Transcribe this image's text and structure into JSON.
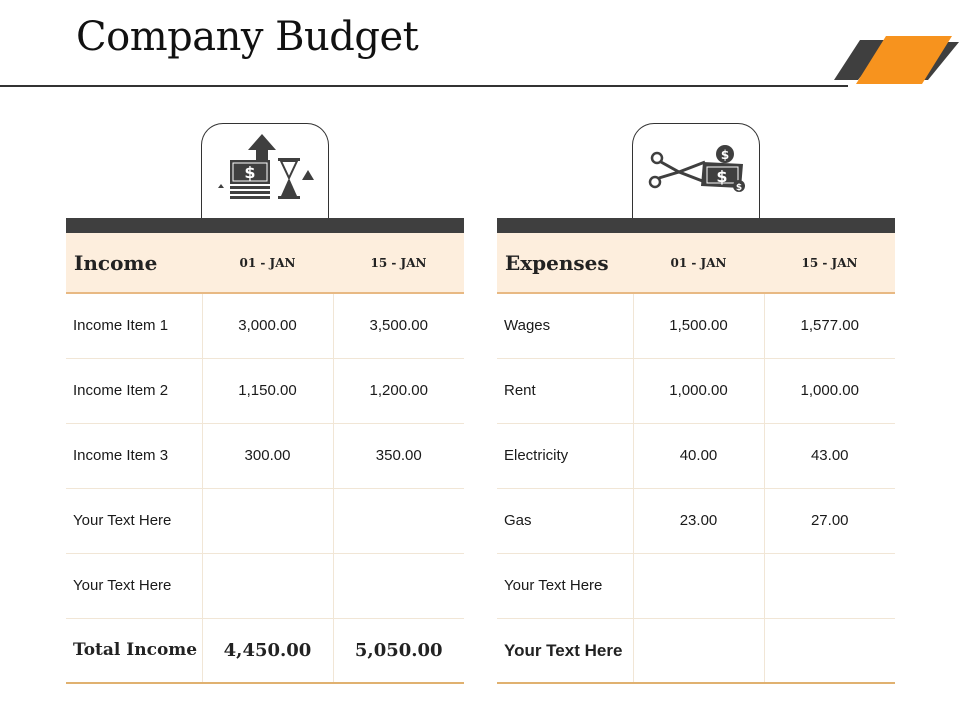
{
  "title": "Company Budget",
  "income": {
    "heading": "Income",
    "columns": [
      "01 - JAN",
      "15 - JAN"
    ],
    "rows": [
      {
        "label": "Income Item 1",
        "v1": "3,000.00",
        "v2": "3,500.00"
      },
      {
        "label": "Income Item 2",
        "v1": "1,150.00",
        "v2": "1,200.00"
      },
      {
        "label": "Income Item 3",
        "v1": "300.00",
        "v2": "350.00"
      },
      {
        "label": "Your Text Here",
        "v1": "",
        "v2": ""
      },
      {
        "label": "Your Text Here",
        "v1": "",
        "v2": ""
      }
    ],
    "total": {
      "label": "Total Income",
      "v1": "4,450.00",
      "v2": "5,050.00"
    }
  },
  "expenses": {
    "heading": "Expenses",
    "columns": [
      "01 - JAN",
      "15 - JAN"
    ],
    "rows": [
      {
        "label": "Wages",
        "v1": "1,500.00",
        "v2": "1,577.00"
      },
      {
        "label": "Rent",
        "v1": "1,000.00",
        "v2": "1,000.00"
      },
      {
        "label": "Electricity",
        "v1": "40.00",
        "v2": "43.00"
      },
      {
        "label": "Gas",
        "v1": "23.00",
        "v2": "27.00"
      },
      {
        "label": "Your Text Here",
        "v1": "",
        "v2": ""
      }
    ],
    "total": {
      "label": "Your Text Here",
      "v1": "",
      "v2": ""
    }
  },
  "icons": {
    "income": "income-money-hourglass-icon",
    "expenses": "scissors-cutting-money-icon",
    "currency_symbol": "$"
  },
  "colors": {
    "accent_orange": "#f7931e",
    "dark_bar": "#3f3f3f",
    "header_fill": "#fdeedd",
    "rule_tan": "#e0b170"
  }
}
